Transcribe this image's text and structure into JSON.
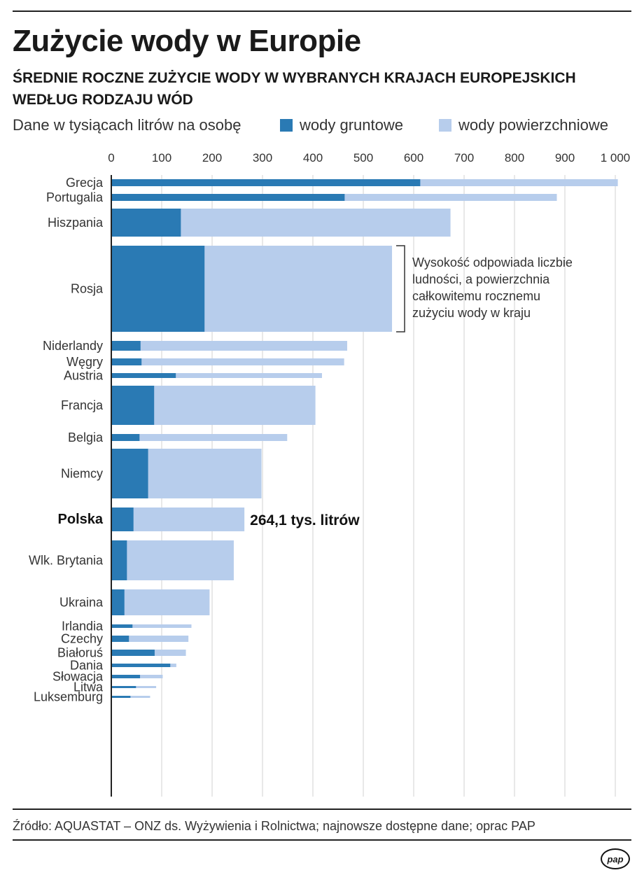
{
  "title": "Zużycie wody w Europie",
  "subtitle": "ŚREDNIE ROCZNE ZUŻYCIE WODY W WYBRANYCH KRAJACH EUROPEJSKICH WEDŁUG RODZAJU WÓD",
  "units": "Dane w tysiącach litrów na osobę",
  "source": "Źródło: AQUASTAT – ONZ ds. Wyżywienia i Rolnictwa; najnowsze dostępne dane; oprac PAP",
  "logo": "pap",
  "colors": {
    "ground": "#2a7ab4",
    "surface": "#b7cdec",
    "grid": "#d0d0d0",
    "axis": "#222222"
  },
  "chart_data": {
    "type": "bar",
    "orientation": "horizontal",
    "stacked": true,
    "variable_width": "bar thickness proportional to population",
    "title": "Zużycie wody w Europie",
    "xlabel": "Dane w tysiącach litrów na osobę",
    "xlim": [
      0,
      1000
    ],
    "xticks": [
      0,
      100,
      200,
      300,
      400,
      500,
      600,
      700,
      800,
      900,
      1000
    ],
    "xtick_labels": [
      "0",
      "100",
      "200",
      "300",
      "400",
      "500",
      "600",
      "700",
      "800",
      "900",
      "1 000"
    ],
    "legend": [
      "wody gruntowe",
      "wody powierzchniowe"
    ],
    "legend_position": "top",
    "categories": [
      {
        "name": "Grecja",
        "ground": 613,
        "total": 1005,
        "population_weight": 1.0
      },
      {
        "name": "Portugalia",
        "ground": 463,
        "total": 884,
        "population_weight": 1.0
      },
      {
        "name": "Hiszpania",
        "ground": 138,
        "total": 673,
        "population_weight": 4.0
      },
      {
        "name": "Rosja",
        "ground": 185,
        "total": 557,
        "population_weight": 12.3
      },
      {
        "name": "Niderlandy",
        "ground": 58,
        "total": 468,
        "population_weight": 1.4
      },
      {
        "name": "Węgry",
        "ground": 60,
        "total": 462,
        "population_weight": 1.0
      },
      {
        "name": "Austria",
        "ground": 128,
        "total": 418,
        "population_weight": 0.7
      },
      {
        "name": "Francja",
        "ground": 85,
        "total": 405,
        "population_weight": 5.6
      },
      {
        "name": "Belgia",
        "ground": 56,
        "total": 349,
        "population_weight": 1.0
      },
      {
        "name": "Niemcy",
        "ground": 73,
        "total": 298,
        "population_weight": 7.1
      },
      {
        "name": "Polska",
        "ground": 44,
        "total": 264.1,
        "population_weight": 3.4,
        "highlight": true
      },
      {
        "name": "Wlk. Brytania",
        "ground": 31,
        "total": 243,
        "population_weight": 5.7
      },
      {
        "name": "Ukraina",
        "ground": 26,
        "total": 195,
        "population_weight": 3.7
      },
      {
        "name": "Irlandia",
        "ground": 42,
        "total": 159,
        "population_weight": 0.5
      },
      {
        "name": "Czechy",
        "ground": 35,
        "total": 153,
        "population_weight": 0.9
      },
      {
        "name": "Białoruś",
        "ground": 86,
        "total": 148,
        "population_weight": 0.9
      },
      {
        "name": "Dania",
        "ground": 117,
        "total": 129,
        "population_weight": 0.5
      },
      {
        "name": "Słowacja",
        "ground": 57,
        "total": 102,
        "population_weight": 0.5
      },
      {
        "name": "Litwa",
        "ground": 49,
        "total": 89,
        "population_weight": 0.3
      },
      {
        "name": "Luksemburg",
        "ground": 38,
        "total": 77,
        "population_weight": 0.1
      }
    ],
    "annotations": {
      "bracket_target": "Rosja",
      "bracket_text": [
        "Wysokość odpowiada liczbie",
        "ludności, a powierzchnia",
        "całkowitemu rocznemu",
        "zużyciu wody w kraju"
      ],
      "callout_target": "Polska",
      "callout_text": "264,1 tys. litrów"
    }
  }
}
